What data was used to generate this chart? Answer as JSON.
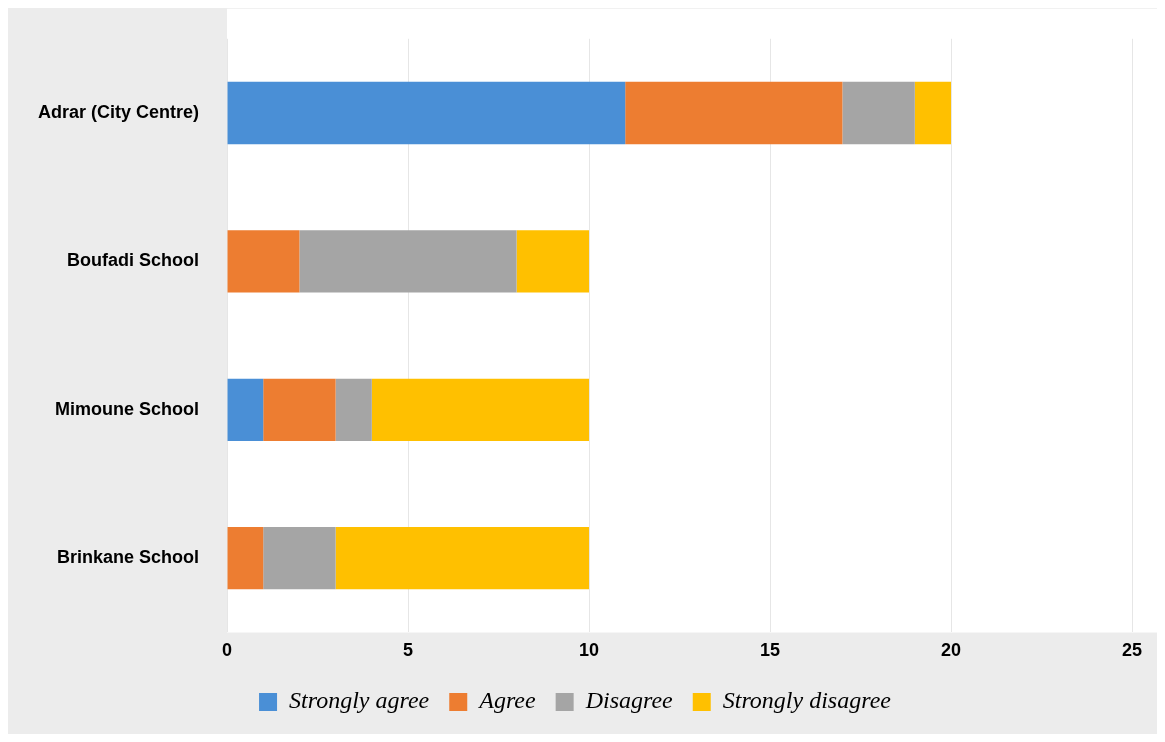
{
  "chart_data": {
    "type": "bar",
    "orientation": "horizontal",
    "stacked": true,
    "categories": [
      "Adrar (City Centre)",
      "Boufadi School",
      "Mimoune School",
      "Brinkane School"
    ],
    "series": [
      {
        "name": "Strongly agree",
        "color": "#4a8fd6",
        "values": [
          11,
          0,
          1,
          0
        ]
      },
      {
        "name": "Agree",
        "color": "#ed7d31",
        "values": [
          6,
          2,
          2,
          1
        ]
      },
      {
        "name": "Disagree",
        "color": "#a5a5a5",
        "values": [
          2,
          6,
          1,
          2
        ]
      },
      {
        "name": "Strongly disagree",
        "color": "#ffc000",
        "values": [
          1,
          2,
          6,
          7
        ]
      }
    ],
    "xlim": [
      0,
      25
    ],
    "xticks": [
      0,
      5,
      10,
      15,
      20,
      25
    ],
    "grid": "x",
    "legend": "bottom"
  }
}
